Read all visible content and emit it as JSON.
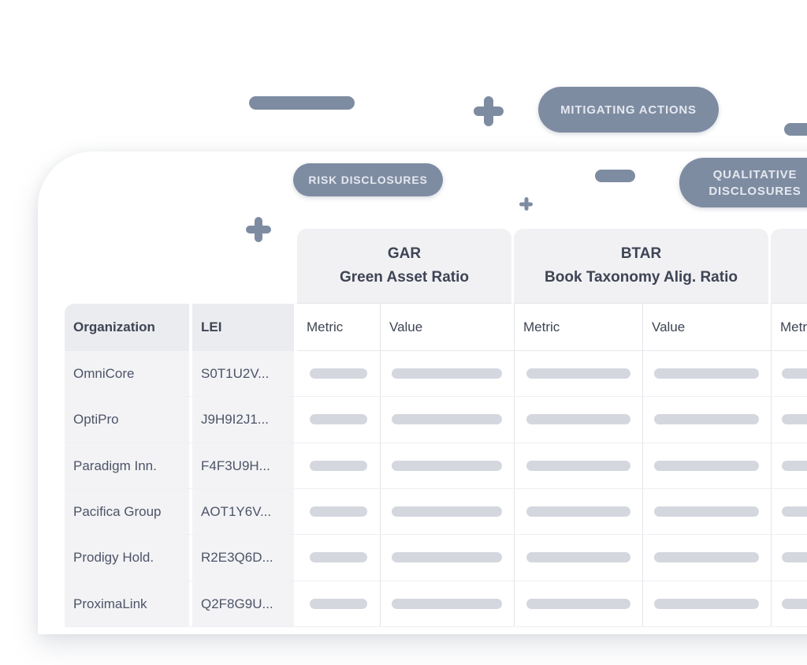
{
  "colors": {
    "accent_slate": "#7e8ca2",
    "chip_text": "#e4e8ef",
    "header_text": "#3e4454",
    "body_text": "#4c5466",
    "placeholder_bar": "#d4d7de",
    "group_header_bg": "#f1f1f4",
    "frozen_col_bg": "#f3f3f6"
  },
  "chips": {
    "mitigating": "MITIGATING ACTIONS",
    "risk": "RISK DISCLOSURES",
    "qualitative_line1": "QUALITATIVE",
    "qualitative_line2": "DISCLOSURES"
  },
  "icons": [
    "plus-icon",
    "minus-dash-icon",
    "collapsed-bar-icon"
  ],
  "table": {
    "groups": [
      {
        "code": "GAR",
        "name": "Green Asset Ratio"
      },
      {
        "code": "BTAR",
        "name": "Book Taxonomy Alig. Ratio"
      },
      {
        "code": "",
        "name": ""
      }
    ],
    "columns": {
      "organization": "Organization",
      "lei": "LEI"
    },
    "sub_headers": [
      "Metric",
      "Value",
      "Metric",
      "Value",
      "Metric"
    ],
    "rows": [
      {
        "organization": "OmniCore",
        "lei": "S0T1U2V..."
      },
      {
        "organization": "OptiPro",
        "lei": "J9H9I2J1..."
      },
      {
        "organization": "Paradigm Inn.",
        "lei": "F4F3U9H..."
      },
      {
        "organization": "Pacifica Group",
        "lei": "AOT1Y6V..."
      },
      {
        "organization": "Prodigy Hold.",
        "lei": "R2E3Q6D..."
      },
      {
        "organization": "ProximaLink",
        "lei": "Q2F8G9U..."
      }
    ]
  }
}
